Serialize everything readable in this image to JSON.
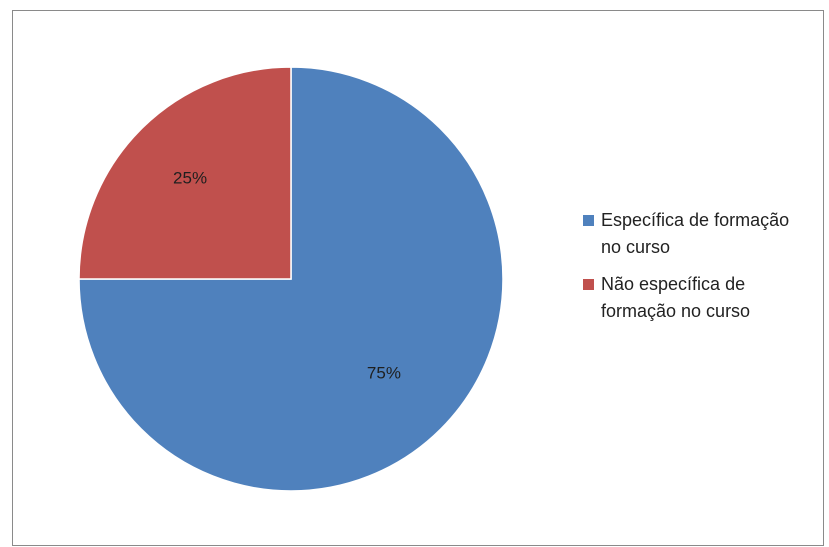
{
  "chart_data": {
    "type": "pie",
    "title": "",
    "categories": [
      "Específica de formação no curso",
      "Não específica de formação no curso"
    ],
    "values": [
      75,
      25
    ],
    "data_labels": [
      "75%",
      "25%"
    ],
    "colors": [
      "#4f81bd",
      "#c0504d"
    ],
    "legend_position": "right"
  }
}
